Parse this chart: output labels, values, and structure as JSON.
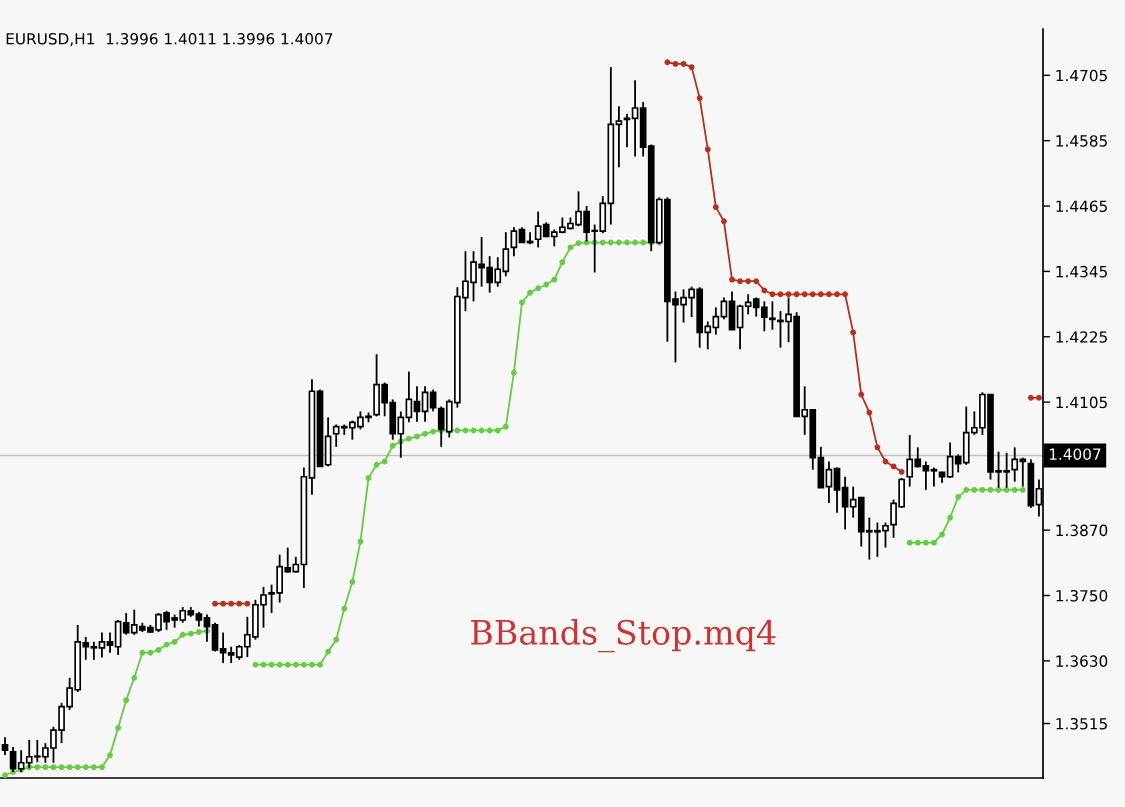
{
  "chart_data": {
    "type": "candlestick",
    "title": "EURUSD,H1  1.3996 1.4011 1.3996 1.4007",
    "annotations": [
      "BBands_Stop.mq4"
    ],
    "categories": [
      null,
      null,
      null,
      null,
      null,
      null,
      null,
      null,
      null,
      null,
      null,
      null,
      null,
      null,
      null,
      null,
      null,
      null,
      null,
      null,
      null,
      null,
      null,
      null,
      null,
      null,
      null,
      null,
      null,
      null,
      null,
      null,
      null,
      null,
      null,
      null,
      null,
      null,
      null,
      null,
      null,
      null,
      null,
      null,
      null,
      null,
      null,
      null,
      null,
      null,
      null,
      null,
      null,
      null,
      null,
      null,
      null,
      null,
      null,
      null,
      null,
      null,
      null,
      null,
      null,
      null,
      null,
      null,
      null,
      null,
      null,
      null,
      null,
      null,
      null,
      null,
      null,
      null,
      null,
      null,
      null,
      null,
      null,
      null,
      null,
      null,
      null,
      null,
      null,
      null,
      null,
      null,
      null,
      null,
      null,
      null,
      null,
      null,
      null,
      null,
      null,
      null,
      null,
      null,
      null,
      null,
      null,
      null,
      null,
      null,
      null,
      null,
      null,
      null,
      null,
      null,
      null,
      null,
      null,
      null,
      null,
      null,
      null,
      null,
      null,
      null,
      null,
      null,
      null
    ],
    "ohlc": [
      [
        1.3476,
        1.349,
        1.3457,
        1.3466
      ],
      [
        1.3463,
        1.3472,
        1.3426,
        1.3432
      ],
      [
        1.3432,
        1.3466,
        1.3426,
        1.3443
      ],
      [
        1.3443,
        1.3485,
        1.3433,
        1.3454
      ],
      [
        1.3454,
        1.3485,
        1.3444,
        1.3455
      ],
      [
        1.3454,
        1.3479,
        1.3443,
        1.347
      ],
      [
        1.347,
        1.3509,
        1.3443,
        1.3503
      ],
      [
        1.3503,
        1.3553,
        1.3479,
        1.3546
      ],
      [
        1.3546,
        1.3599,
        1.354,
        1.358
      ],
      [
        1.3577,
        1.3696,
        1.3573,
        1.3665
      ],
      [
        1.3663,
        1.3674,
        1.3632,
        1.3656
      ],
      [
        1.3656,
        1.3665,
        1.3632,
        1.3654
      ],
      [
        1.3654,
        1.3682,
        1.3636,
        1.3665
      ],
      [
        1.3665,
        1.3682,
        1.3645,
        1.3659
      ],
      [
        1.3656,
        1.3705,
        1.3641,
        1.3702
      ],
      [
        1.37,
        1.3718,
        1.3678,
        1.3682
      ],
      [
        1.3682,
        1.3724,
        1.3678,
        1.3696
      ],
      [
        1.3693,
        1.37,
        1.3683,
        1.3687
      ],
      [
        1.3691,
        1.3696,
        1.3682,
        1.3683
      ],
      [
        1.3687,
        1.3718,
        1.3683,
        1.3715
      ],
      [
        1.3718,
        1.3722,
        1.3687,
        1.3702
      ],
      [
        1.3709,
        1.3715,
        1.3691,
        1.3705
      ],
      [
        1.3705,
        1.3729,
        1.37,
        1.3722
      ],
      [
        1.3722,
        1.3729,
        1.3711,
        1.3715
      ],
      [
        1.3716,
        1.372,
        1.3693,
        1.3705
      ],
      [
        1.3709,
        1.3715,
        1.3665,
        1.3693
      ],
      [
        1.3696,
        1.37,
        1.3647,
        1.365
      ],
      [
        1.3652,
        1.3682,
        1.3626,
        1.3645
      ],
      [
        1.3645,
        1.3656,
        1.3626,
        1.3641
      ],
      [
        1.3637,
        1.3659,
        1.3632,
        1.3656
      ],
      [
        1.3656,
        1.3711,
        1.3637,
        1.3678
      ],
      [
        1.3674,
        1.3742,
        1.3669,
        1.3733
      ],
      [
        1.3733,
        1.3766,
        1.3691,
        1.3751
      ],
      [
        1.3753,
        1.377,
        1.3718,
        1.3755
      ],
      [
        1.3755,
        1.3825,
        1.3737,
        1.3803
      ],
      [
        1.3801,
        1.3838,
        1.3792,
        1.3794
      ],
      [
        1.3794,
        1.3821,
        1.3792,
        1.3807
      ],
      [
        1.3807,
        1.3985,
        1.3764,
        1.3968
      ],
      [
        1.3966,
        1.4147,
        1.3935,
        1.4125
      ],
      [
        1.4125,
        1.4128,
        1.3987,
        1.3987
      ],
      [
        1.399,
        1.4077,
        1.3987,
        1.4042
      ],
      [
        1.4047,
        1.4064,
        1.4023,
        1.406
      ],
      [
        1.406,
        1.4064,
        1.4045,
        1.4058
      ],
      [
        1.4058,
        1.4071,
        1.4036,
        1.4068
      ],
      [
        1.406,
        1.4088,
        1.4055,
        1.4077
      ],
      [
        1.4077,
        1.4086,
        1.4068,
        1.4079
      ],
      [
        1.4082,
        1.4193,
        1.4079,
        1.4137
      ],
      [
        1.4137,
        1.4141,
        1.4079,
        1.4104
      ],
      [
        1.4104,
        1.411,
        1.4036,
        1.4047
      ],
      [
        1.4047,
        1.4088,
        1.4003,
        1.4077
      ],
      [
        1.4077,
        1.4161,
        1.4068,
        1.411
      ],
      [
        1.4106,
        1.4134,
        1.4069,
        1.4088
      ],
      [
        1.4088,
        1.4134,
        1.4069,
        1.4123
      ],
      [
        1.4123,
        1.4128,
        1.4088,
        1.4095
      ],
      [
        1.4093,
        1.4097,
        1.4023,
        1.4055
      ],
      [
        1.4051,
        1.411,
        1.404,
        1.4106
      ],
      [
        1.4104,
        1.4316,
        1.4095,
        1.4299
      ],
      [
        1.4297,
        1.4382,
        1.4272,
        1.4327
      ],
      [
        1.4325,
        1.4382,
        1.429,
        1.4362
      ],
      [
        1.4358,
        1.4408,
        1.4317,
        1.4352
      ],
      [
        1.4352,
        1.4373,
        1.4306,
        1.4325
      ],
      [
        1.4325,
        1.4371,
        1.4317,
        1.4349
      ],
      [
        1.4345,
        1.4417,
        1.4336,
        1.4386
      ],
      [
        1.4389,
        1.4426,
        1.4373,
        1.4419
      ],
      [
        1.4422,
        1.4426,
        1.4398,
        1.4398
      ],
      [
        1.44,
        1.4417,
        1.4395,
        1.4398
      ],
      [
        1.4404,
        1.4455,
        1.4389,
        1.4428
      ],
      [
        1.4431,
        1.4435,
        1.4408,
        1.4409
      ],
      [
        1.4409,
        1.4422,
        1.4391,
        1.4417
      ],
      [
        1.4417,
        1.4444,
        1.4415,
        1.4426
      ],
      [
        1.4424,
        1.4444,
        1.4422,
        1.4433
      ],
      [
        1.4431,
        1.4492,
        1.4428,
        1.4455
      ],
      [
        1.4455,
        1.4465,
        1.44,
        1.4417
      ],
      [
        1.442,
        1.4431,
        1.4343,
        1.4419
      ],
      [
        1.4419,
        1.4483,
        1.4415,
        1.447
      ],
      [
        1.447,
        1.472,
        1.4431,
        1.4615
      ],
      [
        1.4615,
        1.4648,
        1.4536,
        1.4621
      ],
      [
        1.4624,
        1.4634,
        1.4573,
        1.4626
      ],
      [
        1.4626,
        1.4696,
        1.4556,
        1.4645
      ],
      [
        1.4645,
        1.4656,
        1.4556,
        1.4573
      ],
      [
        1.4575,
        1.4578,
        1.4382,
        1.4398
      ],
      [
        1.4398,
        1.4481,
        1.4395,
        1.4477
      ],
      [
        1.4477,
        1.4481,
        1.4216,
        1.429
      ],
      [
        1.4294,
        1.4308,
        1.4178,
        1.4284
      ],
      [
        1.4284,
        1.4312,
        1.4251,
        1.4297
      ],
      [
        1.4297,
        1.4317,
        1.4261,
        1.4312
      ],
      [
        1.4312,
        1.4316,
        1.4205,
        1.4233
      ],
      [
        1.4233,
        1.4253,
        1.4202,
        1.4244
      ],
      [
        1.4242,
        1.4279,
        1.4229,
        1.4262
      ],
      [
        1.4262,
        1.4297,
        1.4257,
        1.429
      ],
      [
        1.429,
        1.4308,
        1.4238,
        1.4238
      ],
      [
        1.4242,
        1.4284,
        1.4202,
        1.4281
      ],
      [
        1.4281,
        1.4303,
        1.4266,
        1.4288
      ],
      [
        1.4294,
        1.4297,
        1.4262,
        1.4279
      ],
      [
        1.4279,
        1.429,
        1.4235,
        1.4261
      ],
      [
        1.4259,
        1.429,
        1.4238,
        1.4257
      ],
      [
        1.4255,
        1.4272,
        1.4205,
        1.4253
      ],
      [
        1.4253,
        1.4297,
        1.4215,
        1.4266
      ],
      [
        1.4262,
        1.427,
        1.4079,
        1.4079
      ],
      [
        1.4079,
        1.4134,
        1.4045,
        1.4091
      ],
      [
        1.4091,
        1.4091,
        1.3981,
        1.4003
      ],
      [
        1.4003,
        1.4023,
        1.3948,
        1.3948
      ],
      [
        1.395,
        1.3996,
        1.392,
        1.3981
      ],
      [
        1.3983,
        1.3985,
        1.3902,
        1.3944
      ],
      [
        1.3948,
        1.3968,
        1.3871,
        1.3913
      ],
      [
        1.3913,
        1.395,
        1.3893,
        1.3926
      ],
      [
        1.393,
        1.393,
        1.384,
        1.3867
      ],
      [
        1.3869,
        1.3893,
        1.3816,
        1.3867
      ],
      [
        1.3867,
        1.3884,
        1.3821,
        1.3869
      ],
      [
        1.3869,
        1.3884,
        1.3838,
        1.3878
      ],
      [
        1.388,
        1.3926,
        1.3856,
        1.3919
      ],
      [
        1.3913,
        1.3966,
        1.3911,
        1.3963
      ],
      [
        1.3968,
        1.4045,
        1.395,
        1.4
      ],
      [
        1.4,
        1.4022,
        1.3985,
        1.3987
      ],
      [
        1.3988,
        1.3996,
        1.3944,
        1.3979
      ],
      [
        1.3981,
        1.3985,
        1.395,
        1.3979
      ],
      [
        1.3976,
        1.3977,
        1.3957,
        1.3968
      ],
      [
        1.3968,
        1.4031,
        1.3966,
        1.4005
      ],
      [
        1.4005,
        1.4009,
        1.3976,
        1.3992
      ],
      [
        1.3994,
        1.4097,
        1.399,
        1.4049
      ],
      [
        1.4049,
        1.4088,
        1.4045,
        1.4058
      ],
      [
        1.4058,
        1.4123,
        1.4045,
        1.4119
      ],
      [
        1.4119,
        1.4119,
        1.3963,
        1.3977
      ],
      [
        1.3979,
        1.4014,
        1.3948,
        1.3977
      ],
      [
        1.3977,
        1.4012,
        1.3948,
        1.3979
      ],
      [
        1.3981,
        1.4022,
        1.3959,
        1.4
      ],
      [
        1.4,
        1.4003,
        1.395,
        1.3996
      ],
      [
        1.3992,
        1.4,
        1.3911,
        1.3915
      ],
      [
        1.3917,
        1.3963,
        1.3895,
        1.3946
      ]
    ],
    "series": [
      {
        "type": "line",
        "color": "#66cc44",
        "values": [
          1.342,
          1.3426,
          1.343,
          1.3435,
          1.3435,
          1.3435,
          1.3435,
          1.3435,
          1.3435,
          1.3435,
          1.3435,
          1.3435,
          1.3435,
          1.3457,
          1.3507,
          1.3558,
          1.3599,
          1.3645,
          1.3645,
          1.365,
          1.366,
          1.3665,
          1.3678,
          1.368,
          1.3683,
          1.3685,
          null,
          null,
          null,
          null,
          null,
          1.3623,
          1.3623,
          1.3623,
          1.3623,
          1.3623,
          1.3623,
          1.3623,
          1.3623,
          1.3623,
          1.3647,
          1.3669,
          1.3726,
          1.3775,
          1.3849,
          1.3966,
          1.399,
          1.3996,
          1.4025,
          1.4033,
          1.4038,
          1.4042,
          1.4047,
          1.4051,
          1.4053,
          1.4053,
          1.4053,
          1.4053,
          1.4053,
          1.4053,
          1.4053,
          1.4053,
          1.406,
          1.4159,
          1.4288,
          1.4306,
          1.4314,
          1.4321,
          1.433,
          1.4362,
          1.4389,
          1.4397,
          1.4398,
          1.4398,
          1.4398,
          1.4398,
          1.4398,
          1.4398,
          1.4398,
          1.4398,
          1.4398,
          1.4398,
          null,
          null,
          null,
          null,
          null,
          null,
          null,
          null,
          null,
          null,
          null,
          null,
          null,
          null,
          null,
          null,
          null,
          null,
          null,
          null,
          null,
          null,
          null,
          null,
          null,
          null,
          null,
          null,
          null,
          null,
          1.3847,
          1.3847,
          1.3847,
          1.3847,
          1.3862,
          1.3893,
          1.3931,
          1.3944,
          1.3944,
          1.3944,
          1.3944,
          1.3944,
          1.3944,
          1.3944,
          1.3944,
          null,
          null
        ]
      },
      {
        "type": "line",
        "color": "#b3321f",
        "values": [
          null,
          null,
          null,
          null,
          null,
          null,
          null,
          null,
          null,
          null,
          null,
          null,
          null,
          null,
          null,
          null,
          null,
          null,
          null,
          null,
          null,
          null,
          null,
          null,
          null,
          null,
          1.3735,
          1.3735,
          1.3735,
          1.3735,
          1.3735,
          null,
          null,
          null,
          null,
          null,
          null,
          null,
          null,
          null,
          null,
          null,
          null,
          null,
          null,
          null,
          null,
          null,
          null,
          null,
          null,
          null,
          null,
          null,
          null,
          null,
          null,
          null,
          null,
          null,
          null,
          null,
          null,
          null,
          null,
          null,
          null,
          null,
          null,
          null,
          null,
          null,
          null,
          null,
          null,
          null,
          null,
          null,
          null,
          null,
          null,
          null,
          1.4729,
          1.4726,
          1.4726,
          1.472,
          1.4663,
          1.4569,
          1.4463,
          1.4437,
          1.433,
          1.4327,
          1.4327,
          1.4327,
          1.431,
          1.4303,
          1.4303,
          1.4303,
          1.4303,
          1.4303,
          1.4303,
          1.4303,
          1.4303,
          1.4303,
          1.4303,
          1.4233,
          1.4119,
          1.4086,
          1.4022,
          1.3996,
          1.3987,
          1.3977,
          null,
          null,
          null,
          null,
          null,
          null,
          null,
          null,
          null,
          null,
          null,
          null,
          null,
          null,
          null,
          1.4113,
          1.4113
        ]
      }
    ],
    "marker": "circle",
    "ref_lines": [
      {
        "axis": "y",
        "value": 1.4007,
        "label": "1.4007",
        "color": "#c0c0c0"
      }
    ],
    "ylim": [
      1.3415,
      1.479
    ],
    "yticks": [
      1.4705,
      1.4585,
      1.4465,
      1.4345,
      1.4225,
      1.4105,
      {
        "value": 1.399,
        "label": null
      },
      {
        "value": 1.387,
        "label": "1.3870"
      },
      {
        "value": 1.375,
        "label": "1.3750"
      },
      {
        "value": 1.363,
        "label": "1.3630"
      },
      1.3515
    ],
    "tick_labels": "y"
  }
}
